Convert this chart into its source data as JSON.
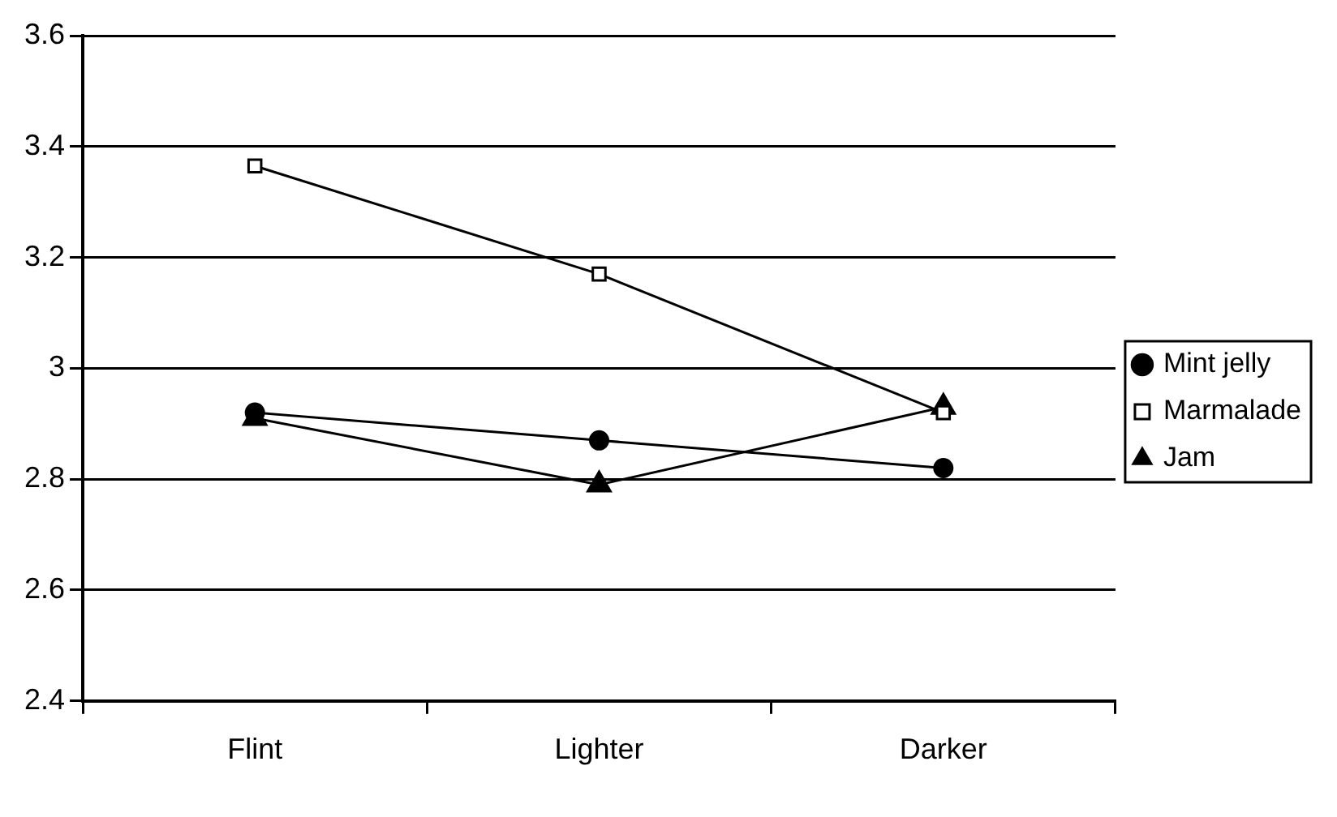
{
  "chart_data": {
    "type": "line",
    "categories": [
      "Flint",
      "Lighter",
      "Darker"
    ],
    "series": [
      {
        "name": "Mint jelly",
        "color": "#000000",
        "marker": "circle",
        "values": [
          2.92,
          2.87,
          2.82
        ]
      },
      {
        "name": "Marmalade",
        "color": "#000000",
        "marker": "square",
        "values": [
          3.365,
          3.17,
          2.92
        ]
      },
      {
        "name": "Jam",
        "color": "#000000",
        "marker": "triangle",
        "values": [
          2.91,
          2.79,
          2.93
        ]
      }
    ],
    "ylim": [
      2.4,
      3.6
    ],
    "yticks": [
      2.4,
      2.6,
      2.8,
      3,
      3.2,
      3.4,
      3.6
    ],
    "grid": "y",
    "legend": "right",
    "line_style": "solid"
  }
}
